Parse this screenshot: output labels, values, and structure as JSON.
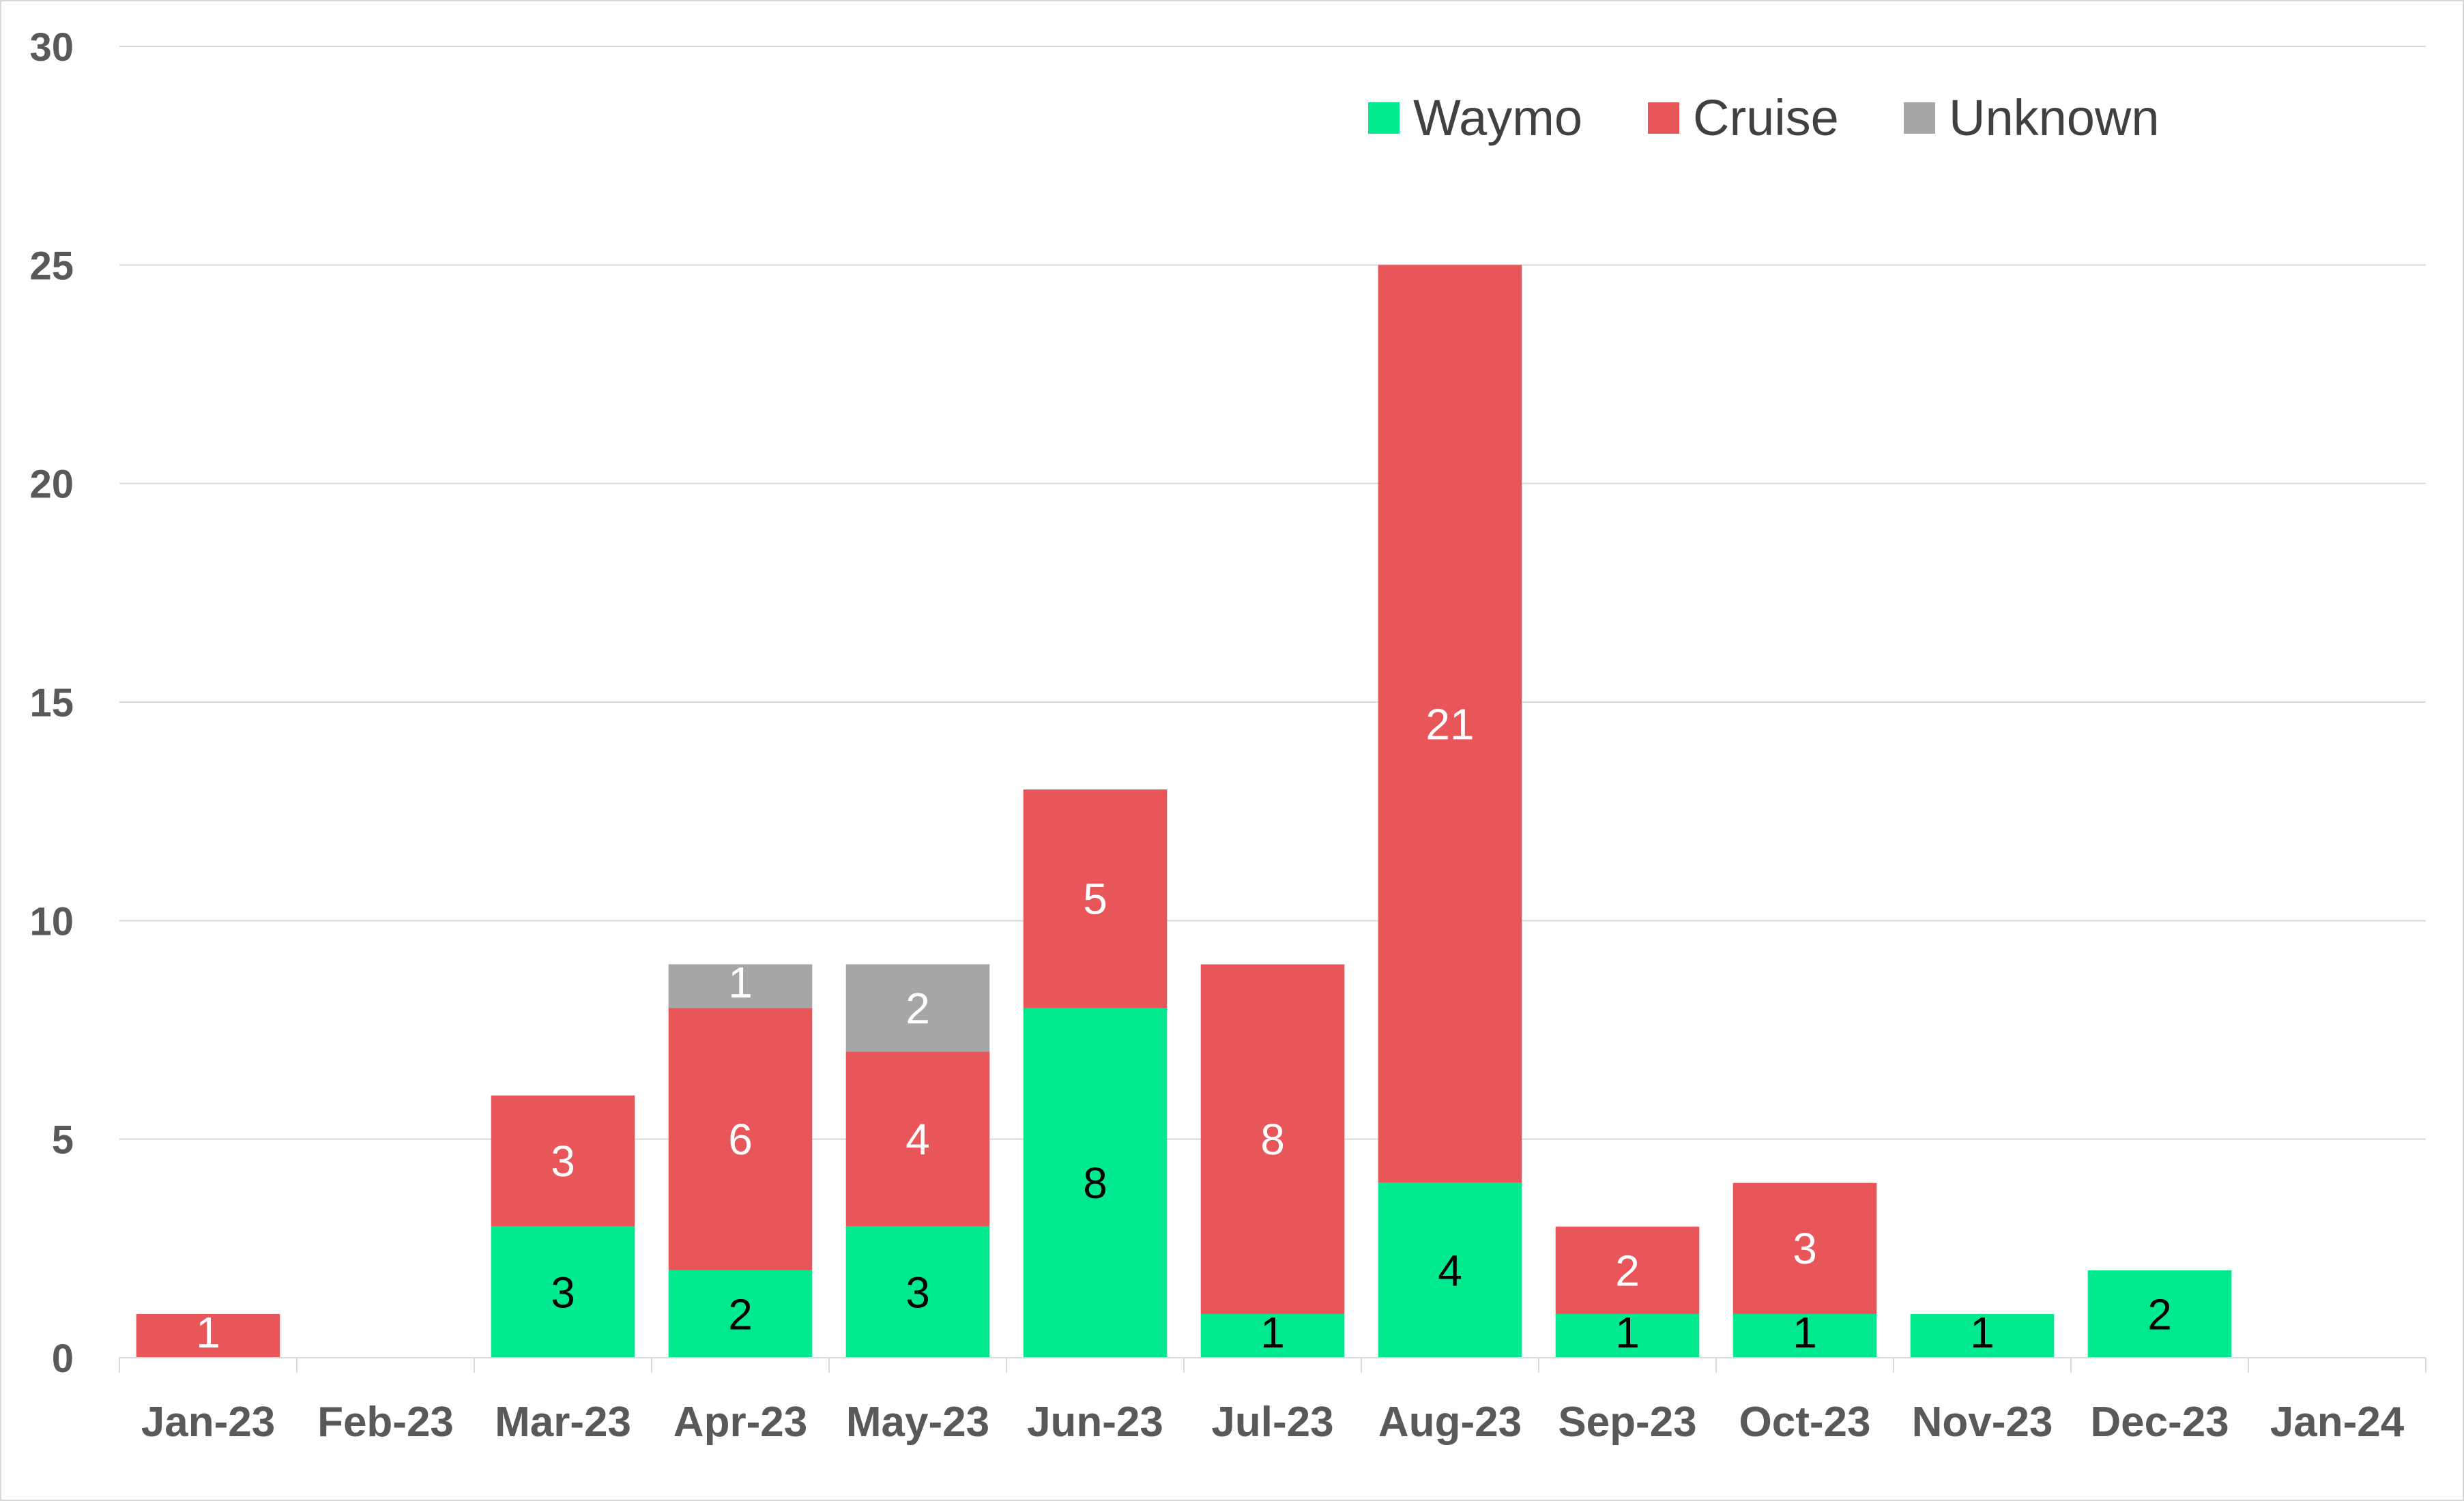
{
  "chart_data": {
    "type": "bar",
    "stacked": true,
    "categories": [
      "Jan-23",
      "Feb-23",
      "Mar-23",
      "Apr-23",
      "May-23",
      "Jun-23",
      "Jul-23",
      "Aug-23",
      "Sep-23",
      "Oct-23",
      "Nov-23",
      "Dec-23",
      "Jan-24"
    ],
    "series": [
      {
        "name": "Waymo",
        "color": "#00E98F",
        "label_color": "#000000",
        "values": [
          0,
          0,
          3,
          2,
          3,
          8,
          1,
          4,
          1,
          1,
          1,
          2,
          0
        ]
      },
      {
        "name": "Cruise",
        "color": "#E8565A",
        "label_color": "#FFFFFF",
        "values": [
          1,
          0,
          3,
          6,
          4,
          5,
          8,
          21,
          2,
          3,
          0,
          0,
          0
        ]
      },
      {
        "name": "Unknown",
        "color": "#A6A6A6",
        "label_color": "#FFFFFF",
        "values": [
          0,
          0,
          0,
          1,
          2,
          0,
          0,
          0,
          0,
          0,
          0,
          0,
          0
        ]
      }
    ],
    "title": "",
    "xlabel": "",
    "ylabel": "",
    "ylim": [
      0,
      30
    ],
    "yticks": [
      0,
      5,
      10,
      15,
      20,
      25,
      30
    ],
    "grid": true,
    "legend_position": "top-right",
    "data_labels": true
  }
}
